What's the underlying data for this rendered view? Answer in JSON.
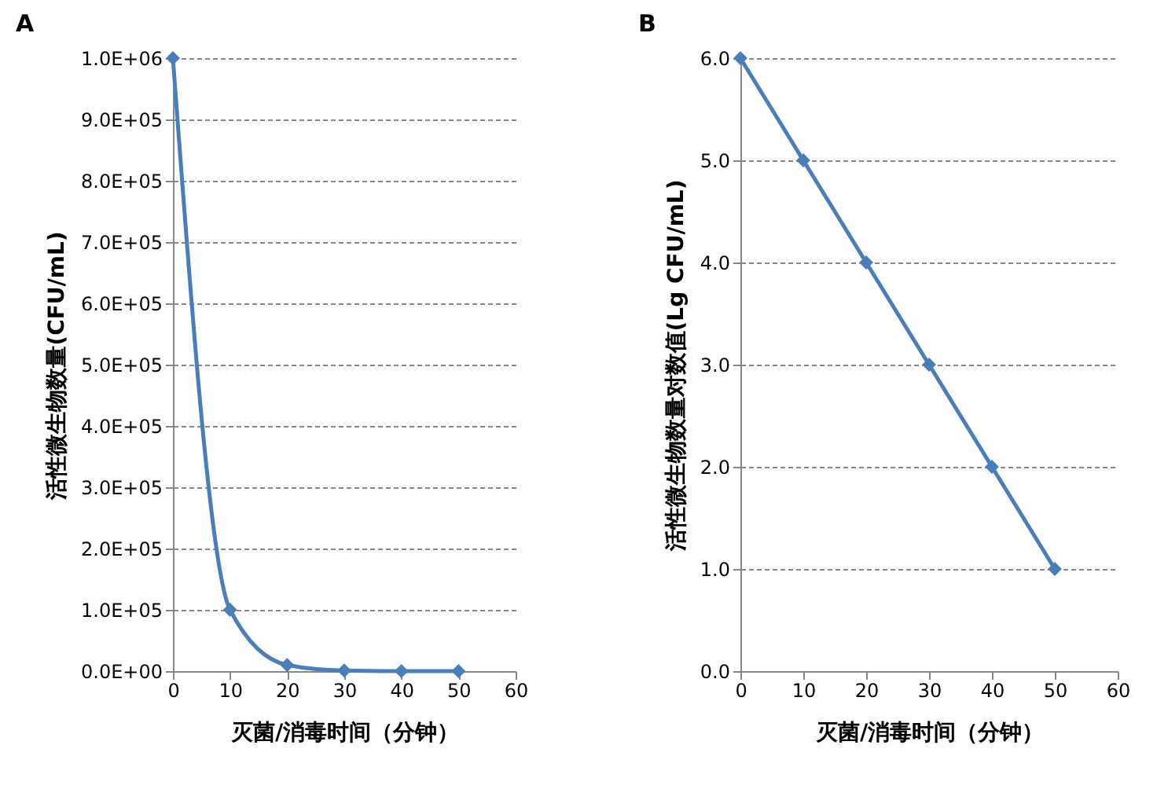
{
  "chart_data": [
    {
      "type": "line",
      "title": "A",
      "xlabel": "灭菌/消毒时间（分钟）",
      "ylabel": "活性微生物数量(CFU/mL)",
      "x": [
        0,
        10,
        20,
        30,
        40,
        50
      ],
      "series": [
        {
          "color": "#4a7ebb",
          "values": [
            1000000,
            100000,
            10000,
            1000,
            100,
            10
          ]
        }
      ],
      "xlim": [
        0,
        60
      ],
      "xticks": [
        0,
        10,
        20,
        30,
        40,
        50,
        60
      ],
      "ylim": [
        0,
        1000000
      ],
      "yticks": [
        {
          "value": 0,
          "label": "0.0E+00"
        },
        {
          "value": 100000,
          "label": "1.0E+05"
        },
        {
          "value": 200000,
          "label": "2.0E+05"
        },
        {
          "value": 300000,
          "label": "3.0E+05"
        },
        {
          "value": 400000,
          "label": "4.0E+05"
        },
        {
          "value": 500000,
          "label": "5.0E+05"
        },
        {
          "value": 600000,
          "label": "6.0E+05"
        },
        {
          "value": 700000,
          "label": "7.0E+05"
        },
        {
          "value": 800000,
          "label": "8.0E+05"
        },
        {
          "value": 900000,
          "label": "9.0E+05"
        },
        {
          "value": 1000000,
          "label": "1.0E+06"
        }
      ],
      "grid": "y",
      "marker": "diamond",
      "line_style": "solid"
    },
    {
      "type": "line",
      "title": "B",
      "xlabel": "灭菌/消毒时间（分钟）",
      "ylabel": "活性微生物数量对数值(Lg CFU/mL)",
      "x": [
        0,
        10,
        20,
        30,
        40,
        50
      ],
      "series": [
        {
          "color": "#4a7ebb",
          "values": [
            6,
            5,
            4,
            3,
            2,
            1
          ]
        }
      ],
      "xlim": [
        0,
        60
      ],
      "xticks": [
        0,
        10,
        20,
        30,
        40,
        50,
        60
      ],
      "ylim": [
        0,
        6
      ],
      "yticks": [
        {
          "value": 0,
          "label": "0.0"
        },
        {
          "value": 1,
          "label": "1.0"
        },
        {
          "value": 2,
          "label": "2.0"
        },
        {
          "value": 3,
          "label": "3.0"
        },
        {
          "value": 4,
          "label": "4.0"
        },
        {
          "value": 5,
          "label": "5.0"
        },
        {
          "value": 6,
          "label": "6.0"
        }
      ],
      "grid": "y",
      "marker": "diamond",
      "line_style": "solid"
    }
  ]
}
